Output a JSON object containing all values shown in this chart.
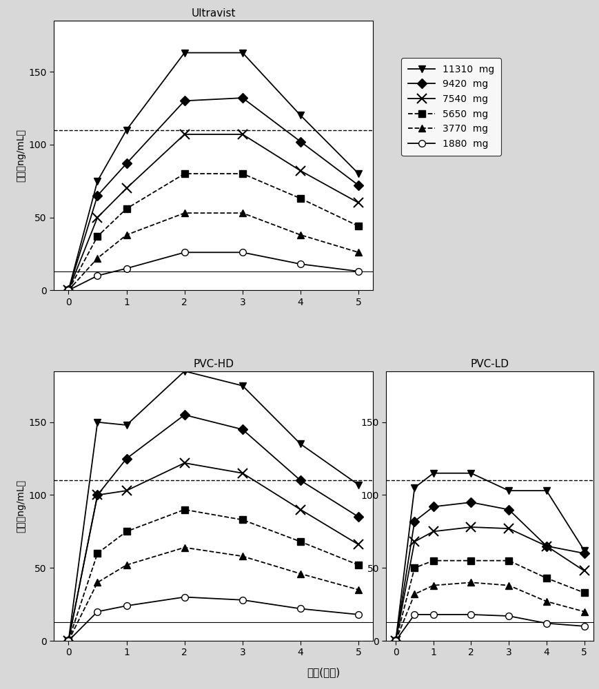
{
  "title_top": "Ultravist",
  "title_mid_left": "PVC-HD",
  "title_mid_right": "PVC-LD",
  "xlabel": "时间(小时)",
  "ylabel": "浓度（ng/mL）",
  "hline_dashed": 110,
  "hline_solid": 13,
  "xvals": [
    0,
    0.5,
    1,
    2,
    3,
    4,
    5
  ],
  "legend_labels": [
    "11310  mg",
    "9420  mg",
    "7540  mg",
    "5650  mg",
    "3770  mg",
    "1880  mg"
  ],
  "Ultravist": {
    "11310": [
      0,
      75,
      110,
      163,
      163,
      120,
      80
    ],
    "9420": [
      0,
      65,
      87,
      130,
      132,
      102,
      72
    ],
    "7540": [
      0,
      50,
      70,
      107,
      107,
      82,
      60
    ],
    "5650": [
      0,
      37,
      56,
      80,
      80,
      63,
      44
    ],
    "3770": [
      0,
      22,
      38,
      53,
      53,
      38,
      26
    ],
    "1880": [
      0,
      10,
      15,
      26,
      26,
      18,
      13
    ]
  },
  "PVC_HD": {
    "11310": [
      0,
      150,
      148,
      185,
      175,
      135,
      107
    ],
    "9420": [
      0,
      100,
      125,
      155,
      145,
      110,
      85
    ],
    "7540": [
      0,
      100,
      103,
      122,
      115,
      90,
      66
    ],
    "5650": [
      0,
      60,
      75,
      90,
      83,
      68,
      52
    ],
    "3770": [
      0,
      40,
      52,
      64,
      58,
      46,
      35
    ],
    "1880": [
      0,
      20,
      24,
      30,
      28,
      22,
      18
    ]
  },
  "PVC_LD": {
    "11310": [
      0,
      105,
      115,
      115,
      103,
      103,
      62
    ],
    "9420": [
      0,
      82,
      92,
      95,
      90,
      65,
      60
    ],
    "7540": [
      0,
      68,
      75,
      78,
      77,
      65,
      48
    ],
    "5650": [
      0,
      50,
      55,
      55,
      55,
      43,
      33
    ],
    "3770": [
      0,
      32,
      38,
      40,
      38,
      27,
      20
    ],
    "1880": [
      0,
      18,
      18,
      18,
      17,
      12,
      10
    ]
  },
  "ylim": [
    0,
    185
  ],
  "yticks": [
    0,
    50,
    100,
    150
  ],
  "xticks": [
    0,
    1,
    2,
    3,
    4,
    5
  ],
  "bg_color": "#d8d8d8",
  "axes_bg": "#ffffff"
}
